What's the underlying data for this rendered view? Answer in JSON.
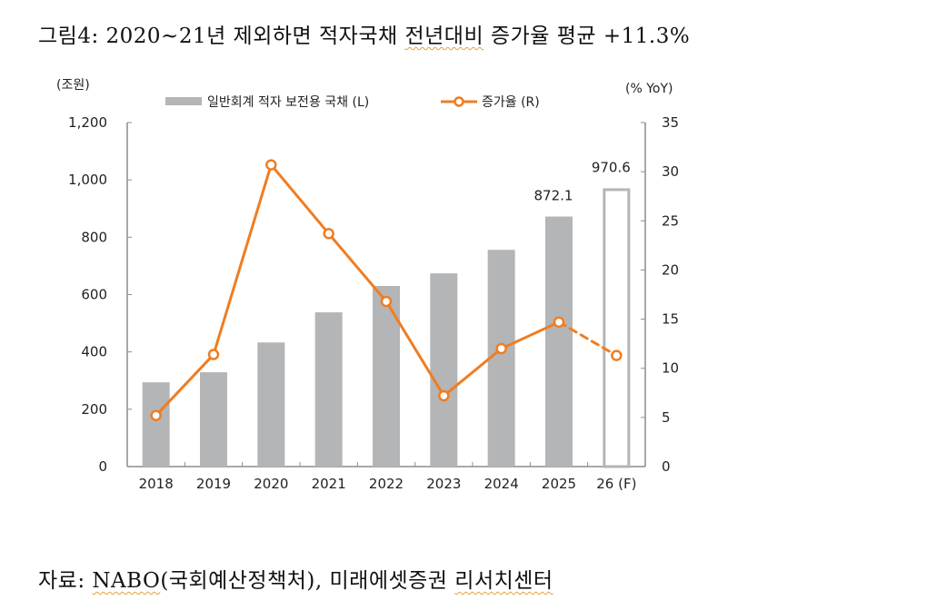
{
  "title": {
    "prefix": "그림4: 2020~21년 제외하면 적자국채 ",
    "underlined": "전년대비",
    "suffix": " 증가율 평균 +11.3%"
  },
  "source": {
    "prefix": "자료: ",
    "underlined1": "NABO",
    "middle": "(국회예산정책처), 미래에셋증권 ",
    "underlined2": "리서치센터"
  },
  "colors": {
    "bar": "#b4b5b7",
    "line": "#ef7d22",
    "axis": "#8c8c8c"
  },
  "chart_data": {
    "type": "bar+line",
    "categories": [
      "2018",
      "2019",
      "2020",
      "2021",
      "2022",
      "2023",
      "2024",
      "2025",
      "26 (F)"
    ],
    "left_axis_unit_label": "(조원)",
    "right_axis_unit_label": "(% YoY)",
    "left_ylim": [
      0,
      1200
    ],
    "left_ticks": [
      "0",
      "200",
      "400",
      "600",
      "800",
      "1,000",
      "1,200"
    ],
    "left_tick_values": [
      0,
      200,
      400,
      600,
      800,
      1000,
      1200
    ],
    "right_ylim": [
      0,
      35
    ],
    "right_ticks": [
      "0",
      "5",
      "10",
      "15",
      "20",
      "25",
      "30",
      "35"
    ],
    "right_tick_values": [
      0,
      5,
      10,
      15,
      20,
      25,
      30,
      35
    ],
    "legend_position": "top",
    "series": [
      {
        "name": "일반회계 적자 보전용 국채 (L)",
        "type": "bar",
        "axis": "left",
        "values": [
          294,
          329,
          433,
          538,
          630,
          674,
          756,
          872.1,
          970.6
        ],
        "forecast_from_index": 8
      },
      {
        "name": "증가율 (R)",
        "type": "line",
        "axis": "right",
        "values": [
          5.2,
          11.4,
          30.7,
          23.7,
          16.8,
          7.2,
          12.0,
          14.7,
          11.3
        ],
        "forecast_from_index": 8
      }
    ],
    "data_labels": [
      {
        "index": 7,
        "text": "872.1"
      },
      {
        "index": 8,
        "text": "970.6"
      }
    ]
  }
}
